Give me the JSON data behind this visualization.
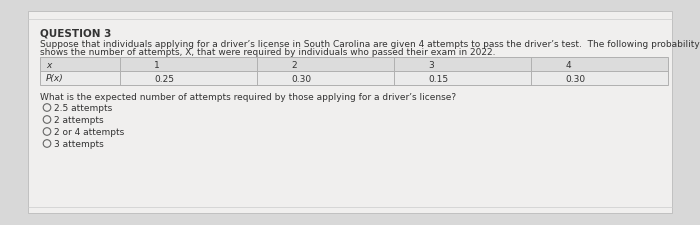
{
  "title": "QUESTION 3",
  "para_line1": "Suppose that individuals applying for a driver’s license in South Carolina are given 4 attempts to pass the driver’s test.  The following probability distribution",
  "para_line2": "shows the number of attempts, X, that were required by individuals who passed their exam in 2022.",
  "table_col0_header": "x",
  "table_col0_data": "P(x)",
  "table_headers": [
    "1",
    "2",
    "3",
    "4"
  ],
  "table_values": [
    "0.25",
    "0.30",
    "0.15",
    "0.30"
  ],
  "question": "What is the expected number of attempts required by those applying for a driver’s license?",
  "options": [
    "2.5 attempts",
    "2 attempts",
    "2 or 4 attempts",
    "3 attempts"
  ],
  "outer_bg": "#d8d8d8",
  "card_bg": "#f0efee",
  "table_bg": "#e8e8e8",
  "table_border": "#b0b0b0",
  "text_color": "#333333",
  "title_fontsize": 7.5,
  "body_fontsize": 6.5,
  "table_fontsize": 6.5
}
